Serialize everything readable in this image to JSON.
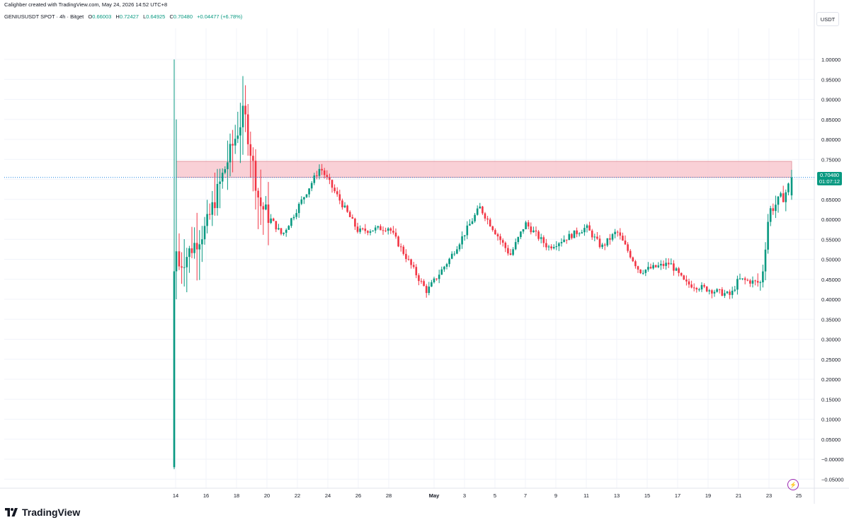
{
  "header": {
    "attribution": "Calighber created with TradingView.com, May 24, 2026 14:52 UTC+8"
  },
  "legend": {
    "symbol": "GENIUSUSDT SPOT · 4h · Bitget",
    "open_label": "O",
    "open": "0.66003",
    "high_label": "H",
    "high": "0.72427",
    "low_label": "L",
    "low": "0.64925",
    "close_label": "C",
    "close": "0.70480",
    "change": "+0.04477 (+6.78%)"
  },
  "price_axis": {
    "unit": "USDT",
    "current_price": "0.70480",
    "countdown": "01:07:12"
  },
  "brand": {
    "name": "TradingView"
  },
  "colors": {
    "up": "#089981",
    "down": "#f23645",
    "zone_fill": "#f8c8cf",
    "zone_border": "#e08a96",
    "price_line": "#1e88e5",
    "grid": "#f0f3fa"
  },
  "icons": {
    "alert": "lightning-bolt-icon",
    "logo": "tradingview-logo-icon"
  },
  "chart_data": {
    "type": "candlestick",
    "y_ticks": [
      "1.00000",
      "0.95000",
      "0.90000",
      "0.85000",
      "0.80000",
      "0.75000",
      "0.70000",
      "0.65000",
      "0.60000",
      "0.55000",
      "0.50000",
      "0.45000",
      "0.40000",
      "0.35000",
      "0.30000",
      "0.25000",
      "0.20000",
      "0.15000",
      "0.10000",
      "0.05000",
      "−0.00000",
      "−0.05000"
    ],
    "x_ticks": [
      "14",
      "16",
      "18",
      "20",
      "22",
      "24",
      "26",
      "28",
      "May",
      "3",
      "5",
      "7",
      "9",
      "11",
      "13",
      "15",
      "17",
      "19",
      "21",
      "23",
      "25"
    ],
    "ylim": [
      -0.075,
      1.075
    ],
    "resistance_zone": [
      0.705,
      0.745
    ],
    "last_price": 0.7048,
    "anchors": [
      {
        "date": "Apr 14",
        "price": 0.47
      },
      {
        "date": "Apr 16",
        "price": 0.58
      },
      {
        "date": "Apr 17",
        "price": 0.7
      },
      {
        "date": "Apr 18.5",
        "price": 0.87
      },
      {
        "date": "Apr 19.5",
        "price": 0.64
      },
      {
        "date": "Apr 21",
        "price": 0.56
      },
      {
        "date": "Apr 23.5",
        "price": 0.73
      },
      {
        "date": "Apr 26",
        "price": 0.57
      },
      {
        "date": "Apr 28",
        "price": 0.58
      },
      {
        "date": "Apr 30",
        "price": 0.45
      },
      {
        "date": "Apr 30.5",
        "price": 0.42
      },
      {
        "date": "May 2",
        "price": 0.5
      },
      {
        "date": "May 4",
        "price": 0.63
      },
      {
        "date": "May 6",
        "price": 0.51
      },
      {
        "date": "May 7",
        "price": 0.59
      },
      {
        "date": "May 8.5",
        "price": 0.53
      },
      {
        "date": "May 11",
        "price": 0.58
      },
      {
        "date": "May 12",
        "price": 0.53
      },
      {
        "date": "May 13",
        "price": 0.57
      },
      {
        "date": "May 14.5",
        "price": 0.47
      },
      {
        "date": "May 16.5",
        "price": 0.49
      },
      {
        "date": "May 17.5",
        "price": 0.44
      },
      {
        "date": "May 20.5",
        "price": 0.41
      },
      {
        "date": "May 21",
        "price": 0.45
      },
      {
        "date": "May 22.5",
        "price": 0.44
      },
      {
        "date": "May 23",
        "price": 0.62
      },
      {
        "date": "May 24",
        "price": 0.66
      },
      {
        "date": "May 24.5",
        "price": 0.7
      }
    ]
  }
}
